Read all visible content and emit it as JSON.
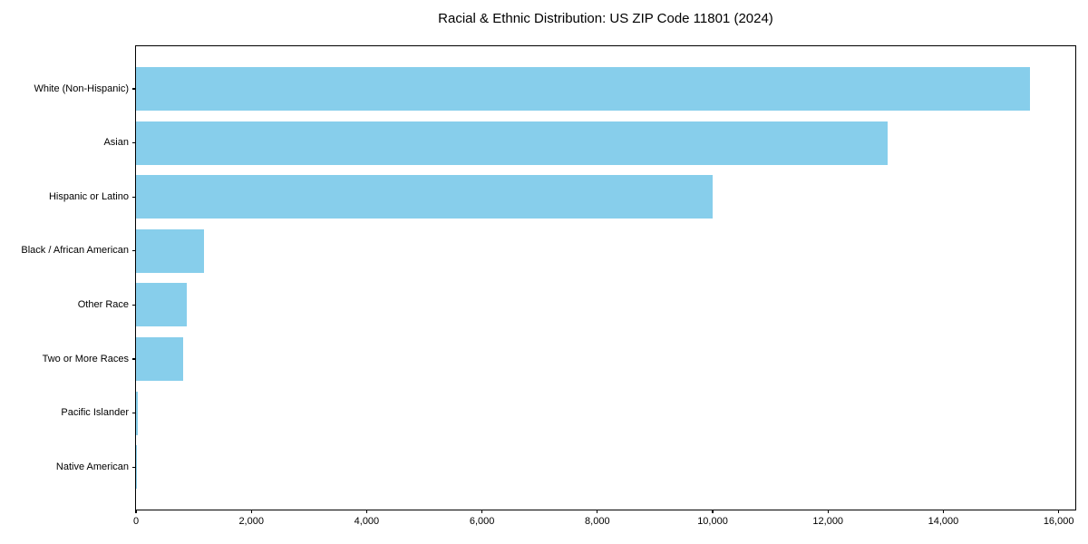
{
  "figure": {
    "title": "Racial & Ethnic Distribution: US ZIP Code 11801 (2024)"
  },
  "chart_data": {
    "type": "bar",
    "orientation": "horizontal",
    "title": "Racial & Ethnic Distribution: US ZIP Code 11801 (2024)",
    "xlabel": "",
    "ylabel": "",
    "categories": [
      "White (Non-Hispanic)",
      "Asian",
      "Hispanic or Latino",
      "Black / African American",
      "Other Race",
      "Two or More Races",
      "Pacific Islander",
      "Native American"
    ],
    "values": [
      15500,
      13030,
      10000,
      1180,
      880,
      820,
      25,
      10
    ],
    "xlim": [
      0,
      16320
    ],
    "x_ticks": [
      0,
      2000,
      4000,
      6000,
      8000,
      10000,
      12000,
      14000,
      16000
    ],
    "x_tick_labels": [
      "0",
      "2,000",
      "4,000",
      "6,000",
      "8,000",
      "10,000",
      "12,000",
      "14,000",
      "16,000"
    ],
    "bar_color": "#87CEEB",
    "axis_color": "#000000",
    "background": "#FFFFFF",
    "grid": false,
    "legend": "none"
  }
}
